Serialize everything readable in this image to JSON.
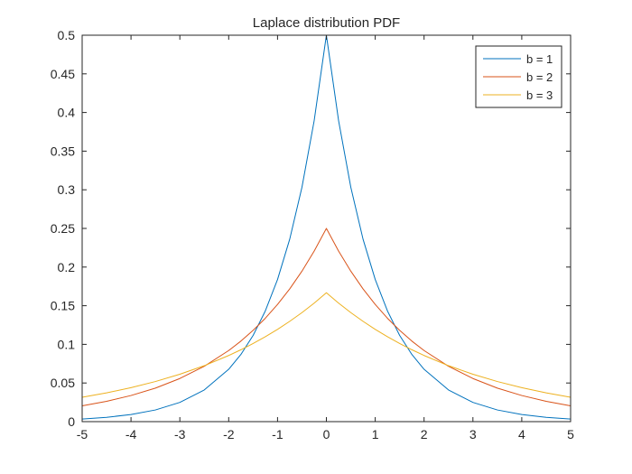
{
  "chart_data": {
    "type": "line",
    "title": "Laplace distribution PDF",
    "xlabel": "",
    "ylabel": "",
    "xlim": [
      -5,
      5
    ],
    "ylim": [
      0,
      0.5
    ],
    "xticks": [
      -5,
      -4,
      -3,
      -2,
      -1,
      0,
      1,
      2,
      3,
      4,
      5
    ],
    "yticks": [
      0,
      0.05,
      0.1,
      0.15,
      0.2,
      0.25,
      0.3,
      0.35,
      0.4,
      0.45,
      0.5
    ],
    "xtick_labels": [
      "-5",
      "-4",
      "-3",
      "-2",
      "-1",
      "0",
      "1",
      "2",
      "3",
      "4",
      "5"
    ],
    "ytick_labels": [
      "0",
      "0.05",
      "0.1",
      "0.15",
      "0.2",
      "0.25",
      "0.3",
      "0.35",
      "0.4",
      "0.45",
      "0.5"
    ],
    "grid": false,
    "legend_position": "top-right",
    "x": [
      -5,
      -4.5,
      -4,
      -3.5,
      -3,
      -2.5,
      -2,
      -1.75,
      -1.5,
      -1.25,
      -1,
      -0.75,
      -0.5,
      -0.25,
      0,
      0.25,
      0.5,
      0.75,
      1,
      1.25,
      1.5,
      1.75,
      2,
      2.5,
      3,
      3.5,
      4,
      4.5,
      5
    ],
    "series": [
      {
        "name": "b = 1",
        "color": "#0072BD",
        "values": [
          0.0034,
          0.0056,
          0.0092,
          0.0151,
          0.0249,
          0.041,
          0.0677,
          0.0869,
          0.1116,
          0.1433,
          0.1839,
          0.2362,
          0.3033,
          0.3894,
          0.5,
          0.3894,
          0.3033,
          0.2362,
          0.1839,
          0.1433,
          0.1116,
          0.0869,
          0.0677,
          0.041,
          0.0249,
          0.0151,
          0.0092,
          0.0056,
          0.0034
        ]
      },
      {
        "name": "b = 2",
        "color": "#D95319",
        "values": [
          0.0205,
          0.0263,
          0.0338,
          0.0434,
          0.0558,
          0.0716,
          0.092,
          0.1042,
          0.1181,
          0.1338,
          0.1516,
          0.1718,
          0.1947,
          0.2206,
          0.25,
          0.2206,
          0.1947,
          0.1718,
          0.1516,
          0.1338,
          0.1181,
          0.1042,
          0.092,
          0.0716,
          0.0558,
          0.0434,
          0.0338,
          0.0263,
          0.0205
        ]
      },
      {
        "name": "b = 3",
        "color": "#EDB120",
        "values": [
          0.0315,
          0.0372,
          0.0439,
          0.0519,
          0.0613,
          0.0724,
          0.0856,
          0.093,
          0.1011,
          0.1099,
          0.1194,
          0.1298,
          0.1411,
          0.1533,
          0.1667,
          0.1533,
          0.1411,
          0.1298,
          0.1194,
          0.1099,
          0.1011,
          0.093,
          0.0856,
          0.0724,
          0.0613,
          0.0519,
          0.0439,
          0.0372,
          0.0315
        ]
      }
    ]
  }
}
